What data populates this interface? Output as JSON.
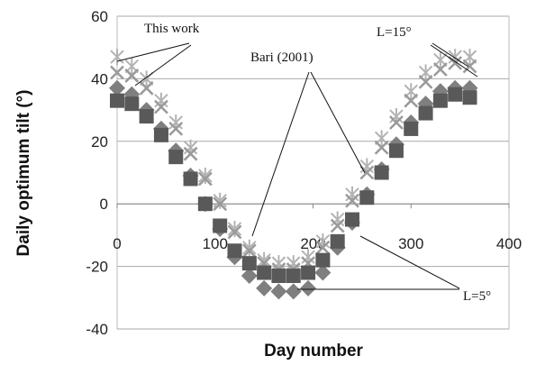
{
  "chart_data": {
    "type": "scatter",
    "ylabel": "Daily optimum tilt (°)",
    "xlabel": "Day number",
    "annotations": [
      "This work",
      "Bari (2001)",
      "L=15°",
      "L=5°"
    ],
    "xlim": [
      0,
      400
    ],
    "xticks": [
      0,
      100,
      200,
      300,
      400
    ],
    "ylim": [
      -40,
      60
    ],
    "yticks": [
      -40,
      -20,
      0,
      20,
      40,
      60
    ],
    "grid": true,
    "series": [
      {
        "color": "#b3b3b3",
        "marker": "asterisk",
        "x": [
          0,
          15,
          30,
          45,
          60,
          75,
          90,
          105,
          120,
          135,
          150,
          165,
          180,
          195,
          210,
          225,
          240,
          255,
          270,
          285,
          300,
          315,
          330,
          345,
          360
        ],
        "values": [
          47,
          44,
          40,
          33,
          26,
          18,
          9,
          1,
          -8,
          -14,
          -18,
          -19,
          -19,
          -17,
          -12,
          -5,
          3,
          12,
          21,
          28,
          36,
          42,
          46,
          47,
          47
        ]
      },
      {
        "color": "#9a9a9a",
        "marker": "x",
        "x": [
          0,
          15,
          30,
          45,
          60,
          75,
          90,
          105,
          120,
          135,
          150,
          165,
          180,
          195,
          210,
          225,
          240,
          255,
          270,
          285,
          300,
          315,
          330,
          345,
          360
        ],
        "values": [
          42,
          41,
          37,
          31,
          24,
          16,
          8,
          0,
          -9,
          -15,
          -19,
          -21,
          -21,
          -19,
          -14,
          -7,
          1,
          10,
          18,
          26,
          33,
          39,
          43,
          45,
          44
        ]
      },
      {
        "color": "#7f7f7f",
        "marker": "diamond",
        "x": [
          0,
          15,
          30,
          45,
          60,
          75,
          90,
          105,
          120,
          135,
          150,
          165,
          180,
          195,
          210,
          225,
          240,
          255,
          270,
          285,
          300,
          315,
          330,
          345,
          360
        ],
        "values": [
          37,
          35,
          30,
          24,
          17,
          9,
          0,
          -8,
          -17,
          -23,
          -27,
          -28,
          -28,
          -27,
          -22,
          -14,
          -6,
          3,
          11,
          19,
          26,
          32,
          36,
          37,
          37
        ]
      },
      {
        "color": "#595959",
        "marker": "square",
        "x": [
          0,
          15,
          30,
          45,
          60,
          75,
          90,
          105,
          120,
          135,
          150,
          165,
          180,
          195,
          210,
          225,
          240,
          255,
          270,
          285,
          300,
          315,
          330,
          345,
          360
        ],
        "values": [
          33,
          32,
          28,
          22,
          15,
          8,
          0,
          -7,
          -15,
          -19,
          -22,
          -23,
          -23,
          -22,
          -18,
          -12,
          -5,
          2,
          10,
          17,
          24,
          29,
          33,
          35,
          34
        ]
      }
    ]
  }
}
